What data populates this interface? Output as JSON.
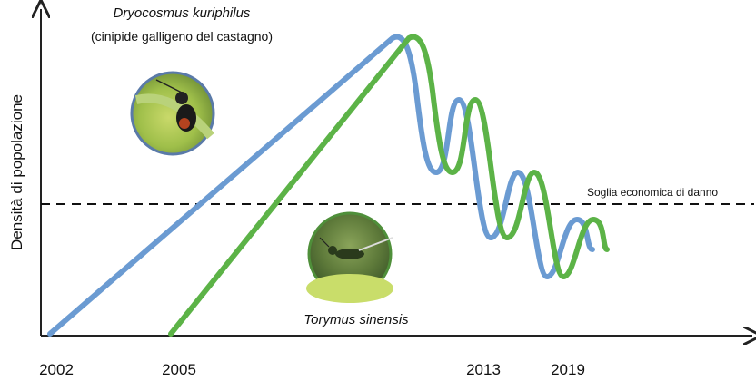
{
  "title": "Dryocosmus kuriphilus",
  "subtitle": "(cinipide galligeno del castagno)",
  "y_axis_label": "Densità di popolazione",
  "threshold_label": "Soglia economica di danno",
  "parasitoid_label": "Torymus sinensis",
  "x_labels": [
    "2002",
    "2005",
    "2013",
    "2019"
  ]
}
